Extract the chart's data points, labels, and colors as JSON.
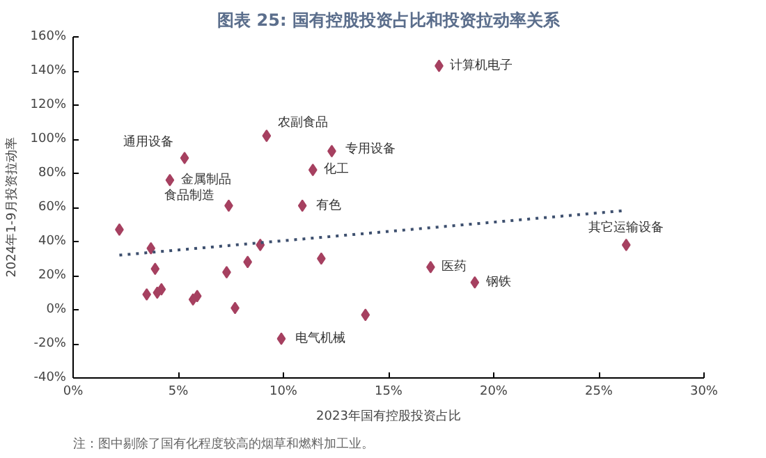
{
  "chart_data": {
    "type": "scatter",
    "title": "图表 25: 国有控股投资占比和投资拉动率关系",
    "xlabel": "2023年国有控股投资占比",
    "ylabel": "2024年1-9月投资拉动率",
    "series": [
      {
        "color": "#a64060",
        "x": [
          17.4,
          9.2,
          5.3,
          4.6,
          12.3,
          11.4,
          7.4,
          10.9,
          2.2,
          3.7,
          3.9,
          3.5,
          4.0,
          4.2,
          5.7,
          5.9,
          7.3,
          7.7,
          8.3,
          8.9,
          11.8,
          13.9,
          9.9,
          17.0,
          19.1,
          26.3
        ],
        "values": [
          143,
          102,
          89,
          76,
          93,
          82,
          61,
          61,
          47,
          36,
          24,
          9,
          10,
          12,
          6,
          8,
          22,
          1,
          28,
          38,
          30,
          -3,
          -17,
          25,
          16,
          38
        ]
      },
      {
        "type": "line",
        "color": "#3d4f6e",
        "line_style": "dotted",
        "marker": "none",
        "x": [
          2.2,
          26.1
        ],
        "values": [
          32,
          58
        ]
      }
    ],
    "marker": "diamond",
    "grid": false,
    "xlim": [
      0,
      30
    ],
    "xticks": [
      {
        "value": 0,
        "label": "0%"
      },
      {
        "value": 5,
        "label": "5%"
      },
      {
        "value": 10,
        "label": "10%"
      },
      {
        "value": 15,
        "label": "15%"
      },
      {
        "value": 20,
        "label": "20%"
      },
      {
        "value": 25,
        "label": "25%"
      },
      {
        "value": 30,
        "label": "30%"
      }
    ],
    "ylim": [
      -40,
      160
    ],
    "yticks": [
      {
        "value": -40,
        "label": "-40%"
      },
      {
        "value": -20,
        "label": "-20%"
      },
      {
        "value": 0,
        "label": "0%"
      },
      {
        "value": 20,
        "label": "20%"
      },
      {
        "value": 40,
        "label": "40%"
      },
      {
        "value": 60,
        "label": "60%"
      },
      {
        "value": 80,
        "label": "80%"
      },
      {
        "value": 100,
        "label": "100%"
      },
      {
        "value": 120,
        "label": "120%"
      },
      {
        "value": 140,
        "label": "140%"
      },
      {
        "value": 160,
        "label": "160%"
      }
    ],
    "annotations": [
      {
        "text": "计算机电子",
        "x": 17.4,
        "y": 143
      },
      {
        "text": "农副食品",
        "x": 9.2,
        "y": 102
      },
      {
        "text": "通用设备",
        "x": 5.3,
        "y": 89
      },
      {
        "text": "金属制品",
        "x": 4.6,
        "y": 76
      },
      {
        "text": "专用设备",
        "x": 12.3,
        "y": 93
      },
      {
        "text": "化工",
        "x": 11.4,
        "y": 82
      },
      {
        "text": "食品制造",
        "x": 7.4,
        "y": 61
      },
      {
        "text": "有色",
        "x": 10.9,
        "y": 61
      },
      {
        "text": "电气机械",
        "x": 9.9,
        "y": -17
      },
      {
        "text": "医药",
        "x": 17.0,
        "y": 25
      },
      {
        "text": "钢铁",
        "x": 19.1,
        "y": 16
      },
      {
        "text": "其它运输设备",
        "x": 26.3,
        "y": 38
      },
      "注：图中剔除了国有化程度较高的烟草和燃料加工业。"
    ]
  }
}
